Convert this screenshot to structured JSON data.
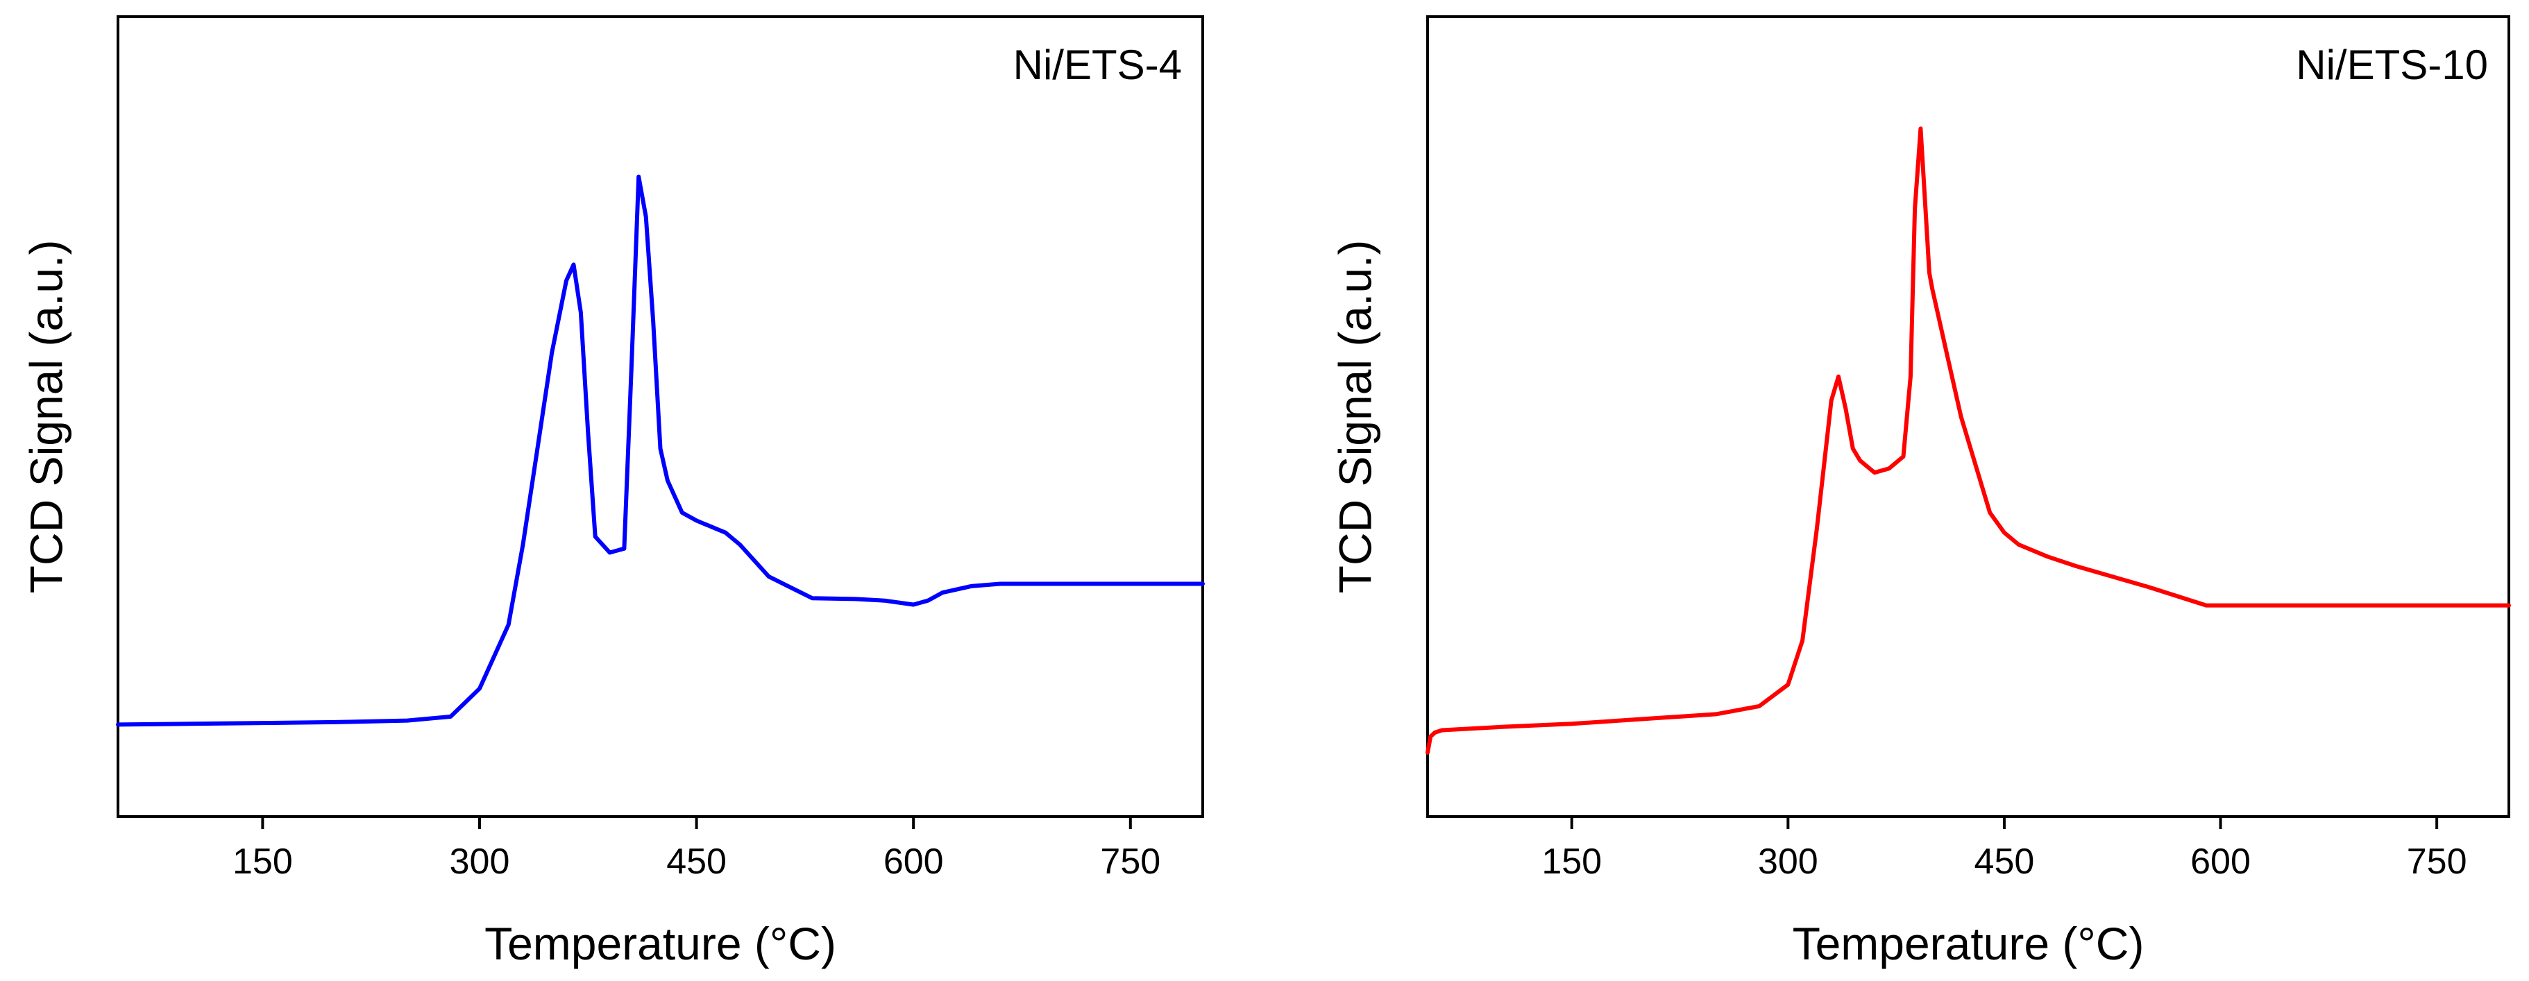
{
  "chart_data": [
    {
      "type": "line",
      "panel_label": "Ni/ETS-4",
      "xlabel": "Temperature (°C)",
      "ylabel": "TCD Signal (a.u.)",
      "xlim": [
        50,
        800
      ],
      "ylim": [
        0,
        100
      ],
      "xticks": [
        150,
        300,
        450,
        600,
        750
      ],
      "color": "#0000ff",
      "series": [
        {
          "x": [
            50,
            100,
            150,
            200,
            250,
            280,
            300,
            320,
            330,
            340,
            350,
            360,
            365,
            370,
            375,
            380,
            390,
            400,
            405,
            410,
            415,
            420,
            425,
            430,
            440,
            450,
            470,
            480,
            500,
            530,
            560,
            580,
            600,
            610,
            620,
            640,
            660,
            700,
            750,
            800
          ],
          "y": [
            11.5,
            11.6,
            11.7,
            11.8,
            12,
            12.5,
            16,
            24,
            34,
            46,
            58,
            67,
            69,
            63,
            48,
            35,
            33,
            33.5,
            56,
            80,
            75,
            62,
            46,
            42,
            38,
            37,
            35.5,
            34,
            30,
            27.3,
            27.2,
            27,
            26.5,
            27,
            28,
            28.8,
            29.1,
            29.1,
            29.1,
            29.1
          ]
        }
      ]
    },
    {
      "type": "line",
      "panel_label": "Ni/ETS-10",
      "xlabel": "Temperature (°C)",
      "ylabel": "TCD Signal (a.u.)",
      "xlim": [
        50,
        800
      ],
      "ylim": [
        0,
        100
      ],
      "xticks": [
        150,
        300,
        450,
        600,
        750
      ],
      "color": "#ff0000",
      "series": [
        {
          "x": [
            50,
            52,
            55,
            60,
            100,
            150,
            200,
            250,
            280,
            300,
            310,
            320,
            330,
            335,
            340,
            345,
            350,
            360,
            370,
            380,
            385,
            388,
            392,
            395,
            398,
            400,
            410,
            420,
            430,
            440,
            450,
            460,
            480,
            500,
            550,
            590,
            600,
            650,
            700,
            750,
            800
          ],
          "y": [
            8,
            10,
            10.5,
            10.8,
            11.2,
            11.6,
            12.2,
            12.8,
            13.8,
            16.5,
            22,
            36,
            52,
            55,
            51,
            46,
            44.5,
            43,
            43.5,
            45,
            55,
            76,
            86,
            77,
            68,
            66,
            58,
            50,
            44,
            38,
            35.5,
            34,
            32.5,
            31.3,
            28.7,
            26.4,
            26.4,
            26.4,
            26.4,
            26.4,
            26.4
          ]
        }
      ]
    }
  ]
}
